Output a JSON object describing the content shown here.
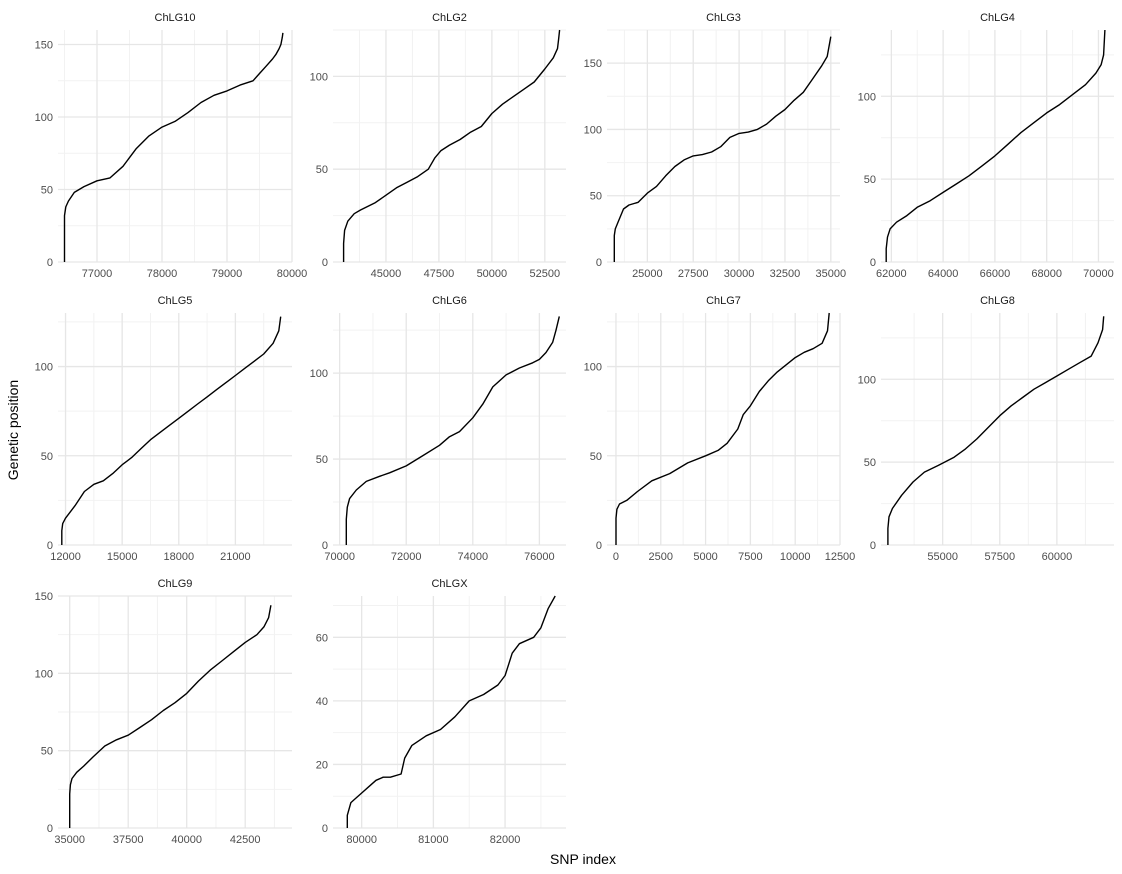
{
  "figure": {
    "xlabel": "SNP index",
    "ylabel": "Genetic position"
  },
  "chart_data": [
    {
      "type": "line",
      "title": "ChLG10",
      "xlim": [
        76400,
        80000
      ],
      "ylim": [
        0,
        160
      ],
      "xticks": [
        77000,
        78000,
        79000,
        80000
      ],
      "yticks": [
        0,
        50,
        100,
        150
      ],
      "series": [
        {
          "x": [
            76500,
            76500,
            76520,
            76560,
            76650,
            76800,
            77000,
            77200,
            77400,
            77600,
            77800,
            78000,
            78200,
            78400,
            78600,
            78800,
            79000,
            79200,
            79400,
            79500,
            79600,
            79700,
            79750,
            79800,
            79830,
            79850,
            79860
          ],
          "y": [
            0,
            32,
            38,
            42,
            48,
            52,
            56,
            58,
            66,
            78,
            87,
            93,
            97,
            103,
            110,
            115,
            118,
            122,
            125,
            130,
            135,
            140,
            143,
            147,
            150,
            155,
            158
          ]
        }
      ]
    },
    {
      "type": "line",
      "title": "ChLG2",
      "xlim": [
        42500,
        53500
      ],
      "ylim": [
        0,
        125
      ],
      "xticks": [
        45000,
        47500,
        50000,
        52500
      ],
      "yticks": [
        0,
        50,
        100
      ],
      "series": [
        {
          "x": [
            43000,
            43000,
            43050,
            43200,
            43500,
            43800,
            44500,
            45000,
            45500,
            46000,
            46500,
            47000,
            47300,
            47600,
            48000,
            48500,
            49000,
            49500,
            50000,
            50500,
            51000,
            51500,
            52000,
            52500,
            52900,
            53100,
            53150,
            53200
          ],
          "y": [
            0,
            10,
            17,
            22,
            26,
            28,
            32,
            36,
            40,
            43,
            46,
            50,
            56,
            60,
            63,
            66,
            70,
            73,
            80,
            85,
            89,
            93,
            97,
            104,
            110,
            115,
            120,
            125
          ]
        }
      ]
    },
    {
      "type": "line",
      "title": "ChLG3",
      "xlim": [
        22800,
        35500
      ],
      "ylim": [
        0,
        175
      ],
      "xticks": [
        25000,
        27500,
        30000,
        32500,
        35000
      ],
      "yticks": [
        0,
        50,
        100,
        150
      ],
      "series": [
        {
          "x": [
            23200,
            23200,
            23250,
            23400,
            23700,
            24000,
            24500,
            25000,
            25500,
            26000,
            26500,
            27000,
            27500,
            28000,
            28500,
            29000,
            29500,
            30000,
            30500,
            31000,
            31500,
            32000,
            32500,
            33000,
            33500,
            34000,
            34500,
            34800,
            35000
          ],
          "y": [
            0,
            20,
            25,
            30,
            40,
            43,
            45,
            52,
            57,
            65,
            72,
            77,
            80,
            81,
            83,
            87,
            94,
            97,
            98,
            100,
            104,
            110,
            115,
            122,
            128,
            138,
            148,
            155,
            170
          ]
        }
      ]
    },
    {
      "type": "line",
      "title": "ChLG4",
      "xlim": [
        61600,
        70600
      ],
      "ylim": [
        0,
        140
      ],
      "xticks": [
        62000,
        64000,
        66000,
        68000,
        70000
      ],
      "yticks": [
        0,
        50,
        100
      ],
      "series": [
        {
          "x": [
            61800,
            61800,
            61850,
            61950,
            62200,
            62600,
            63000,
            63500,
            64000,
            64500,
            65000,
            65500,
            66000,
            66500,
            67000,
            67500,
            68000,
            68500,
            69000,
            69500,
            69900,
            70100,
            70200,
            70250
          ],
          "y": [
            0,
            8,
            15,
            20,
            24,
            28,
            33,
            37,
            42,
            47,
            52,
            58,
            64,
            71,
            78,
            84,
            90,
            95,
            101,
            107,
            114,
            119,
            125,
            140
          ]
        }
      ]
    },
    {
      "type": "line",
      "title": "ChLG5",
      "xlim": [
        11600,
        24000
      ],
      "ylim": [
        0,
        130
      ],
      "xticks": [
        12000,
        15000,
        18000,
        21000
      ],
      "yticks": [
        0,
        50,
        100
      ],
      "series": [
        {
          "x": [
            11800,
            11800,
            11850,
            12000,
            12500,
            13000,
            13500,
            14000,
            14500,
            15000,
            15500,
            16000,
            16500,
            17000,
            17500,
            18000,
            18500,
            19000,
            19500,
            20000,
            20500,
            21000,
            21500,
            22000,
            22500,
            23000,
            23300,
            23400
          ],
          "y": [
            0,
            8,
            12,
            15,
            22,
            30,
            34,
            36,
            40,
            45,
            49,
            54,
            59,
            63,
            67,
            71,
            75,
            79,
            83,
            87,
            91,
            95,
            99,
            103,
            107,
            113,
            120,
            128
          ]
        }
      ]
    },
    {
      "type": "line",
      "title": "ChLG6",
      "xlim": [
        69800,
        76800
      ],
      "ylim": [
        0,
        135
      ],
      "xticks": [
        70000,
        72000,
        74000,
        76000
      ],
      "yticks": [
        0,
        50,
        100
      ],
      "series": [
        {
          "x": [
            70200,
            70200,
            70230,
            70300,
            70500,
            70800,
            71200,
            71500,
            72000,
            72500,
            73000,
            73300,
            73600,
            74000,
            74300,
            74600,
            75000,
            75400,
            75800,
            76000,
            76200,
            76400,
            76500,
            76600
          ],
          "y": [
            0,
            15,
            22,
            27,
            32,
            37,
            40,
            42,
            46,
            52,
            58,
            63,
            66,
            74,
            82,
            92,
            99,
            103,
            106,
            108,
            112,
            118,
            125,
            133
          ]
        }
      ]
    },
    {
      "type": "line",
      "title": "ChLG7",
      "xlim": [
        -500,
        12500
      ],
      "ylim": [
        0,
        130
      ],
      "xticks": [
        0,
        2500,
        5000,
        7500,
        10000,
        12500
      ],
      "yticks": [
        0,
        50,
        100
      ],
      "series": [
        {
          "x": [
            0,
            0,
            50,
            200,
            600,
            1200,
            2000,
            3000,
            4000,
            5000,
            5700,
            6200,
            6800,
            7100,
            7500,
            8000,
            8500,
            9000,
            9500,
            10000,
            10500,
            11000,
            11500,
            11800,
            11900
          ],
          "y": [
            0,
            15,
            20,
            23,
            25,
            30,
            36,
            40,
            46,
            50,
            53,
            57,
            65,
            73,
            78,
            86,
            92,
            97,
            101,
            105,
            108,
            110,
            113,
            120,
            130
          ]
        }
      ]
    },
    {
      "type": "line",
      "title": "ChLG8",
      "xlim": [
        52300,
        62500
      ],
      "ylim": [
        0,
        140
      ],
      "xticks": [
        55000,
        57500,
        60000
      ],
      "yticks": [
        0,
        50,
        100
      ],
      "series": [
        {
          "x": [
            52600,
            52600,
            52650,
            52800,
            53200,
            53700,
            54200,
            54800,
            55500,
            56000,
            56500,
            57000,
            57500,
            58000,
            58500,
            59000,
            59500,
            60000,
            60500,
            61000,
            61500,
            61800,
            62000,
            62050
          ],
          "y": [
            0,
            10,
            17,
            22,
            30,
            38,
            44,
            48,
            53,
            58,
            64,
            71,
            78,
            84,
            89,
            94,
            98,
            102,
            106,
            110,
            114,
            122,
            130,
            138
          ]
        }
      ]
    },
    {
      "type": "line",
      "title": "ChLG9",
      "xlim": [
        34500,
        44500
      ],
      "ylim": [
        0,
        150
      ],
      "xticks": [
        35000,
        37500,
        40000,
        42500
      ],
      "yticks": [
        0,
        50,
        100,
        150
      ],
      "series": [
        {
          "x": [
            35000,
            35000,
            35030,
            35100,
            35300,
            35600,
            36000,
            36500,
            37000,
            37500,
            38000,
            38500,
            39000,
            39500,
            40000,
            40500,
            41000,
            41500,
            42000,
            42500,
            43000,
            43300,
            43500,
            43600
          ],
          "y": [
            0,
            22,
            28,
            32,
            36,
            40,
            46,
            53,
            57,
            60,
            65,
            70,
            76,
            81,
            87,
            95,
            102,
            108,
            114,
            120,
            125,
            130,
            136,
            144
          ]
        }
      ]
    },
    {
      "type": "line",
      "title": "ChLGX",
      "xlim": [
        79600,
        82850
      ],
      "ylim": [
        0,
        73
      ],
      "xticks": [
        80000,
        81000,
        82000
      ],
      "yticks": [
        0,
        20,
        40,
        60
      ],
      "series": [
        {
          "x": [
            79800,
            79800,
            79850,
            79900,
            80000,
            80100,
            80200,
            80300,
            80400,
            80550,
            80600,
            80700,
            80900,
            81100,
            81300,
            81500,
            81700,
            81900,
            82000,
            82100,
            82200,
            82400,
            82500,
            82600,
            82700
          ],
          "y": [
            0,
            4,
            8,
            9,
            11,
            13,
            15,
            16,
            16,
            17,
            22,
            26,
            29,
            31,
            35,
            40,
            42,
            45,
            48,
            55,
            58,
            60,
            63,
            69,
            73
          ]
        }
      ]
    }
  ]
}
